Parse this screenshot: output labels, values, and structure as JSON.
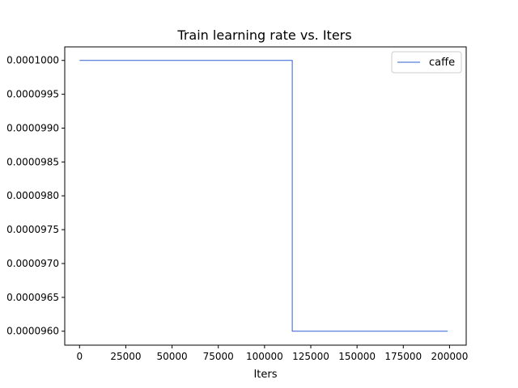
{
  "colors": {
    "series": "#2f5fd0",
    "axes": "#000000",
    "background": "#ffffff"
  },
  "chart_data": {
    "type": "line",
    "title": "Train learning rate  vs. Iters",
    "xlabel": "Iters",
    "ylabel": "",
    "xlim": [
      -8000,
      209000
    ],
    "ylim": [
      9.5794e-05,
      0.0001002
    ],
    "xticks": [
      0,
      25000,
      50000,
      75000,
      100000,
      125000,
      150000,
      175000,
      200000
    ],
    "xtick_labels": [
      "0",
      "25000",
      "50000",
      "75000",
      "100000",
      "125000",
      "150000",
      "175000",
      "200000"
    ],
    "yticks": [
      9.6e-05,
      9.65e-05,
      9.7e-05,
      9.75e-05,
      9.8e-05,
      9.85e-05,
      9.9e-05,
      9.95e-05,
      0.0001
    ],
    "ytick_labels": [
      "0.0000960",
      "0.0000965",
      "0.0000970",
      "0.0000975",
      "0.0000980",
      "0.0000985",
      "0.0000990",
      "0.0000995",
      "0.0001000"
    ],
    "legend": "top-right",
    "grid": false,
    "series": [
      {
        "name": "caffe",
        "x": [
          0,
          115000,
          115000,
          199000
        ],
        "y": [
          0.0001,
          0.0001,
          9.6e-05,
          9.6e-05
        ]
      }
    ]
  }
}
